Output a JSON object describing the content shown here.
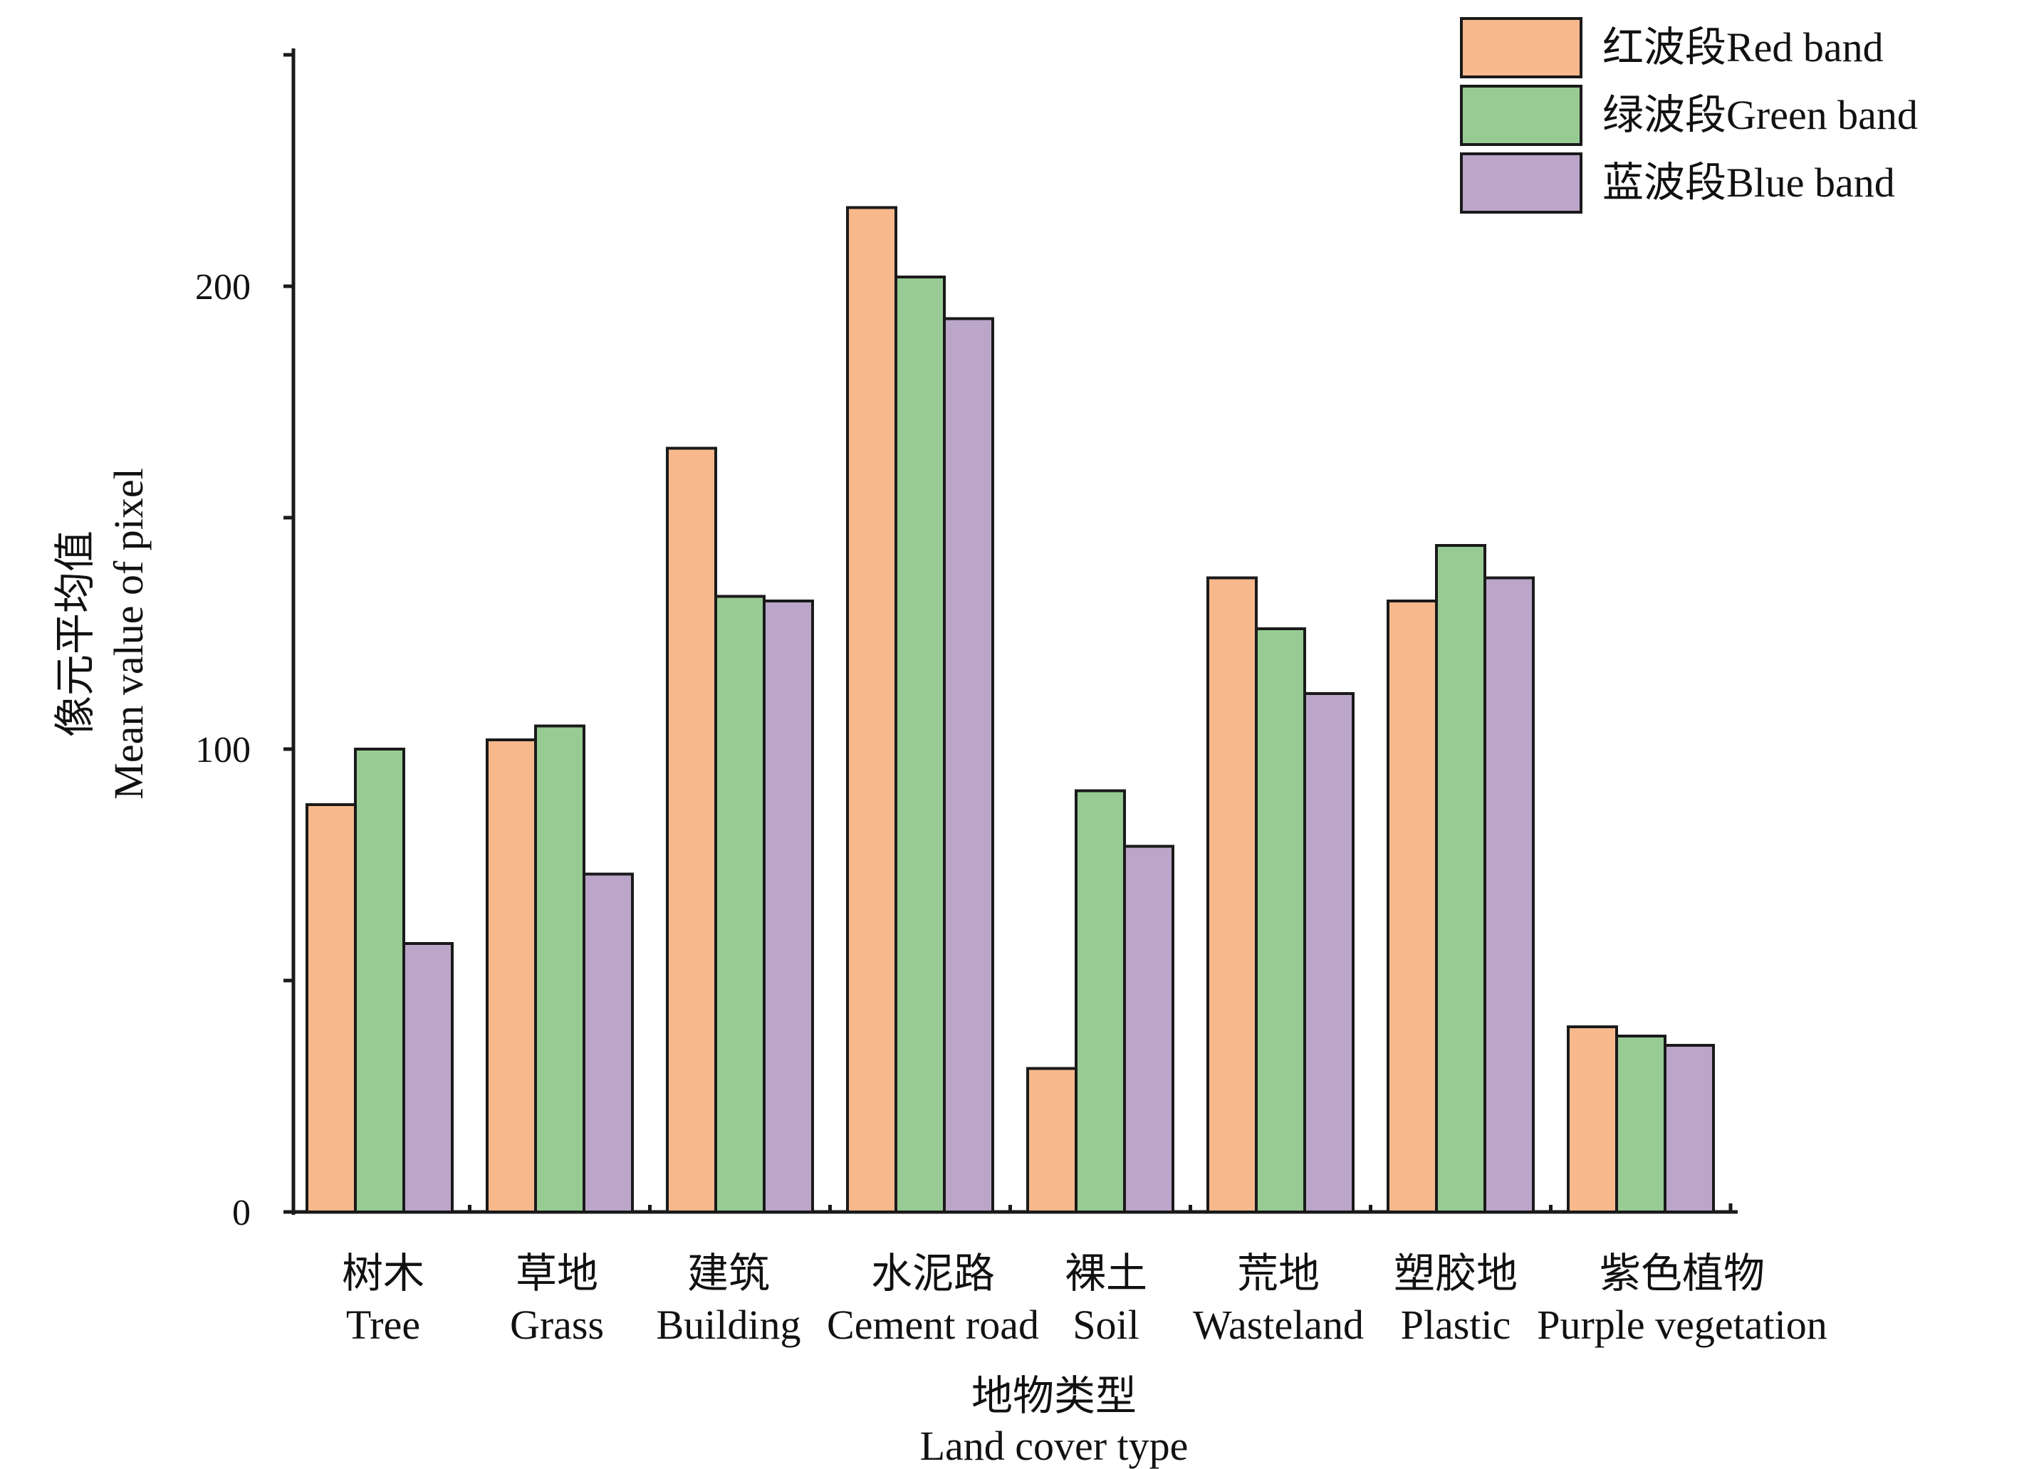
{
  "chart_data": {
    "type": "bar",
    "xlabel_zh": "地物类型",
    "xlabel": "Land cover type",
    "ylabel_zh": "像元平均值",
    "ylabel": "Mean value of pixel",
    "ylim": [
      0,
      250
    ],
    "yticks": [
      0,
      100,
      200
    ],
    "grid": false,
    "legend_position": "top-right",
    "categories": [
      {
        "zh": "树木",
        "en": "Tree"
      },
      {
        "zh": "草地",
        "en": "Grass"
      },
      {
        "zh": "建筑",
        "en": "Building"
      },
      {
        "zh": "水泥路",
        "en": "Cement road"
      },
      {
        "zh": "裸土",
        "en": "Soil"
      },
      {
        "zh": "荒地",
        "en": "Wasteland"
      },
      {
        "zh": "塑胶地",
        "en": "Plastic"
      },
      {
        "zh": "紫色植物",
        "en": "Purple vegetation"
      }
    ],
    "series": [
      {
        "name": "红波段Red band",
        "color": "#F7B88C",
        "values": [
          88,
          102,
          165,
          217,
          31,
          137,
          132,
          40
        ]
      },
      {
        "name": "绿波段Green band",
        "color": "#98CB94",
        "values": [
          100,
          105,
          133,
          202,
          91,
          126,
          144,
          38
        ]
      },
      {
        "name": "蓝波段Blue band",
        "color": "#BBA6C9",
        "values": [
          58,
          73,
          132,
          193,
          79,
          112,
          137,
          36
        ]
      }
    ]
  }
}
